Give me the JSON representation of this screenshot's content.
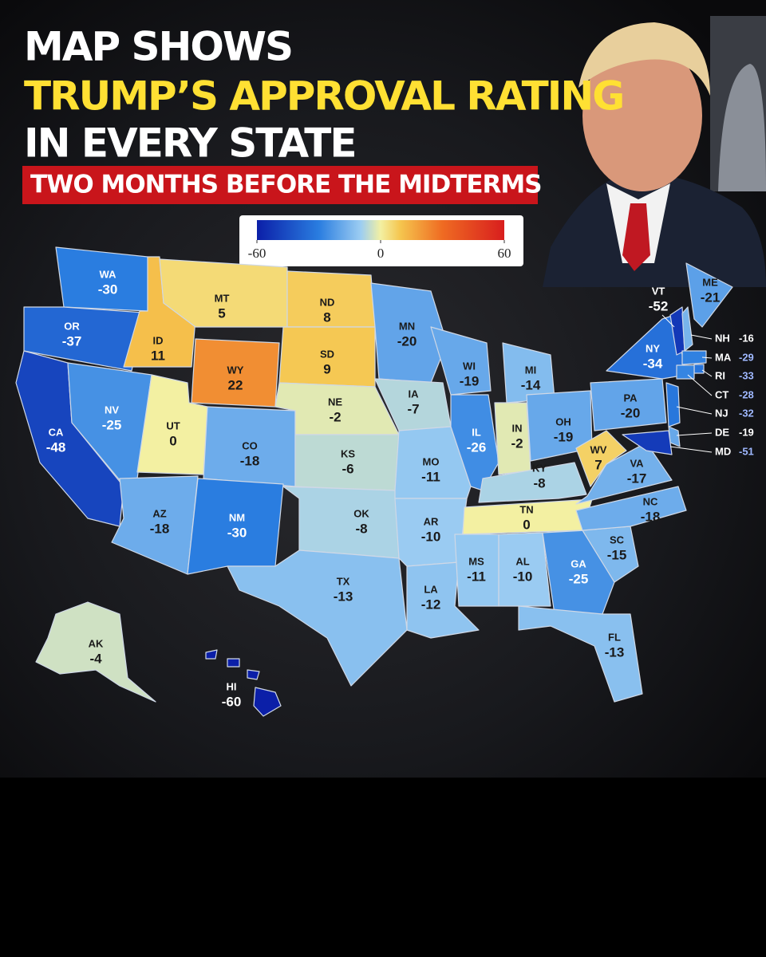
{
  "chart_data": {
    "type": "choropleth",
    "title": [
      "MAP SHOWS",
      "TRUMP’S APPROVAL RATING",
      "IN EVERY STATE"
    ],
    "subtitle": "TWO MONTHS BEFORE THE MIDTERMS",
    "clim": [
      -60,
      60
    ],
    "cticks": [
      -60,
      0,
      60
    ],
    "categories": [
      "WA",
      "OR",
      "CA",
      "NV",
      "ID",
      "MT",
      "WY",
      "UT",
      "CO",
      "AZ",
      "NM",
      "ND",
      "SD",
      "NE",
      "KS",
      "OK",
      "TX",
      "MN",
      "IA",
      "MO",
      "AR",
      "LA",
      "WI",
      "IL",
      "MI",
      "IN",
      "OH",
      "KY",
      "TN",
      "MS",
      "AL",
      "GA",
      "FL",
      "SC",
      "NC",
      "VA",
      "WV",
      "PA",
      "NY",
      "VT",
      "ME",
      "NH",
      "MA",
      "RI",
      "CT",
      "NJ",
      "DE",
      "MD",
      "AK",
      "HI"
    ],
    "values": [
      -30,
      -37,
      -48,
      -25,
      11,
      5,
      22,
      0,
      -18,
      -18,
      -30,
      8,
      9,
      -2,
      -6,
      -8,
      -13,
      -20,
      -7,
      -11,
      -10,
      -12,
      -19,
      -26,
      -14,
      -2,
      -19,
      -8,
      0,
      -11,
      -10,
      -25,
      -13,
      -15,
      -18,
      -17,
      7,
      -20,
      -34,
      -52,
      -21,
      -16,
      -29,
      -33,
      -28,
      -32,
      -19,
      -51,
      -4,
      -60
    ]
  }
}
